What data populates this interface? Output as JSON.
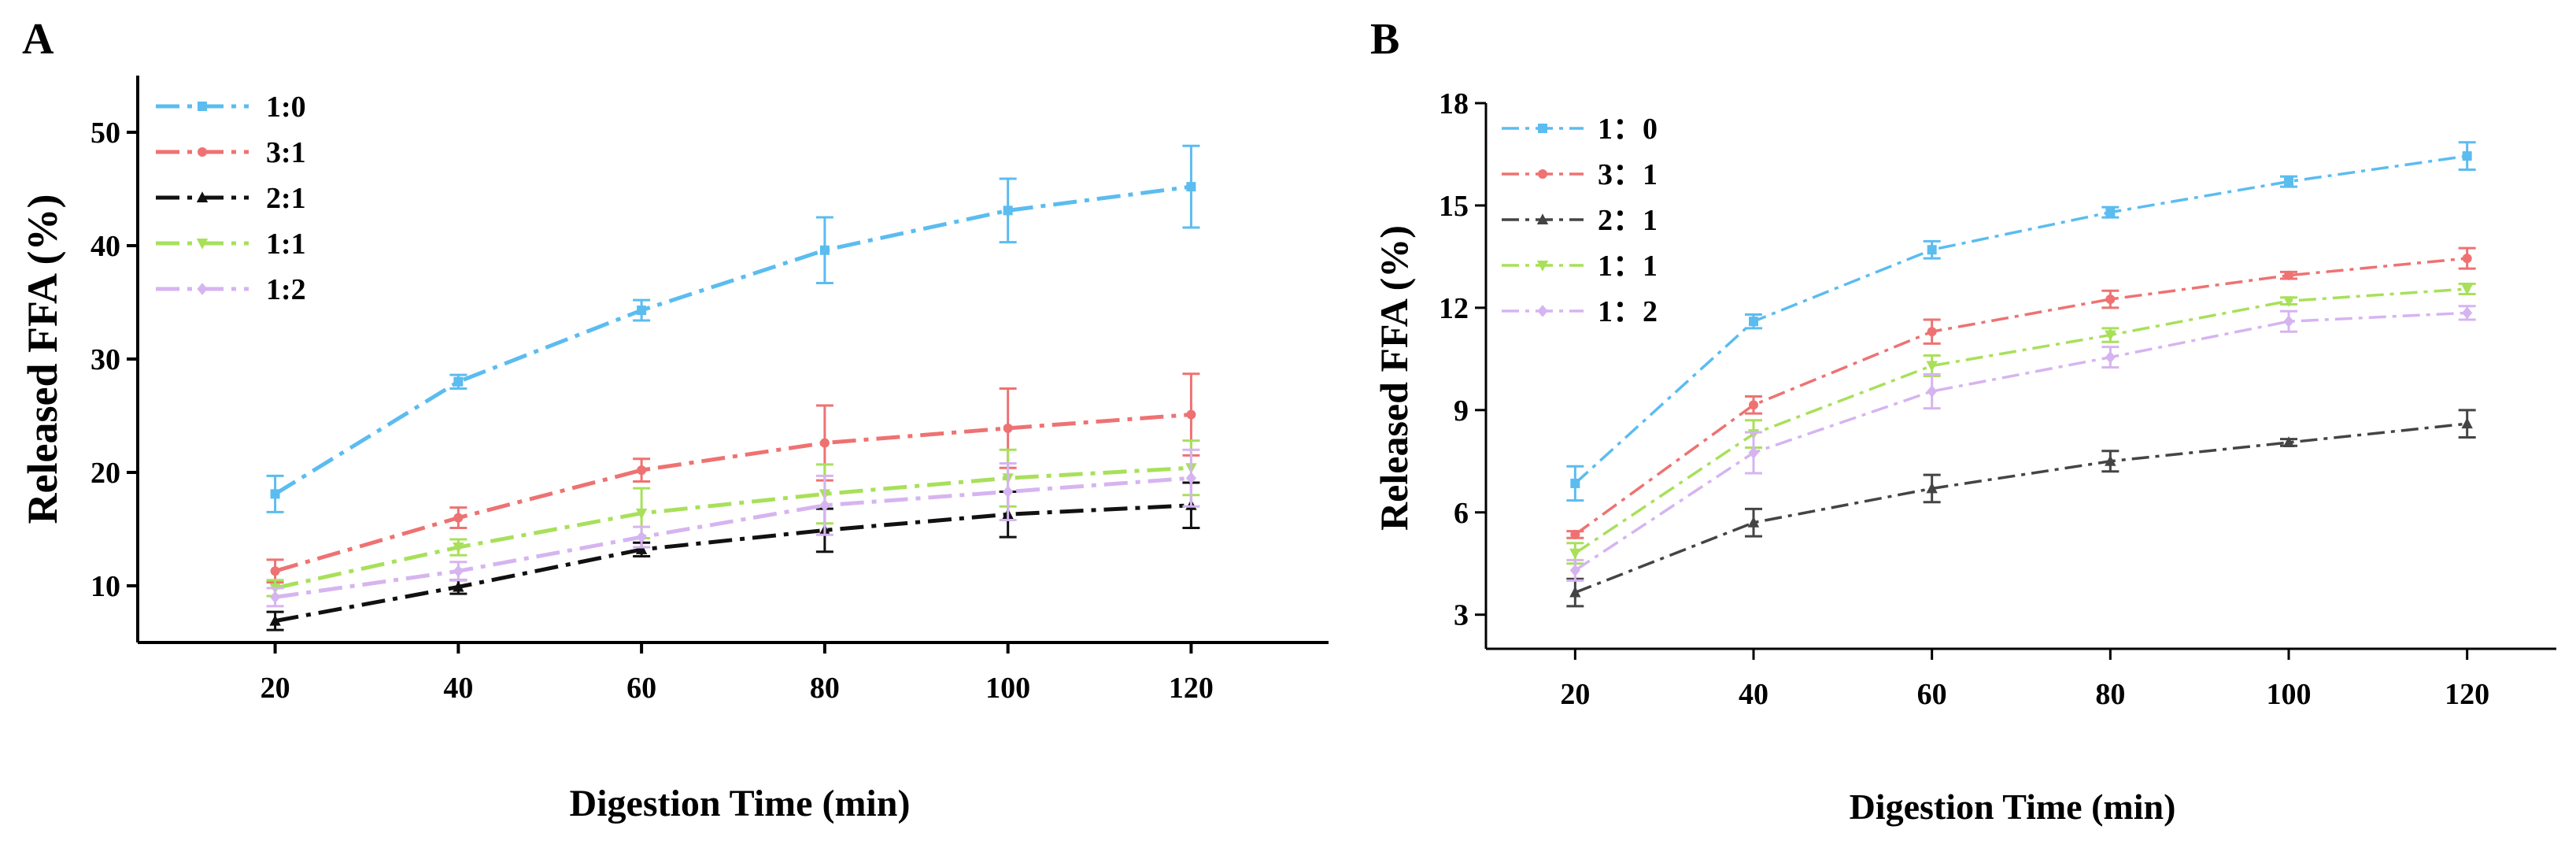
{
  "panels": [
    {
      "letter": "A",
      "chart_data": {
        "type": "line",
        "title": "",
        "xlabel": "Digestion Time (min)",
        "ylabel": "Released FFA (%)",
        "x": [
          20,
          40,
          60,
          80,
          100,
          120
        ],
        "xticks": [
          "20",
          "40",
          "60",
          "80",
          "100",
          "120"
        ],
        "xlim": [
          5,
          135
        ],
        "yticks": [
          "10",
          "20",
          "30",
          "40",
          "50"
        ],
        "ylim": [
          5,
          55
        ],
        "grid": false,
        "legend_position": "top-left",
        "series": [
          {
            "name": "1:0",
            "color": "#5bbcf0",
            "marker": "square",
            "values": [
              18.1,
              28.0,
              34.3,
              39.6,
              43.1,
              45.2
            ],
            "errors": [
              1.6,
              0.6,
              0.9,
              2.9,
              2.8,
              3.6
            ]
          },
          {
            "name": "3:1",
            "color": "#ee7272",
            "marker": "circle",
            "values": [
              11.3,
              16.0,
              20.2,
              22.6,
              23.9,
              25.1
            ],
            "errors": [
              1.0,
              0.9,
              1.0,
              3.3,
              3.5,
              3.6
            ]
          },
          {
            "name": "2:1",
            "color": "#111111",
            "marker": "triangle-up",
            "values": [
              6.9,
              9.9,
              13.2,
              14.9,
              16.3,
              17.1
            ],
            "errors": [
              0.8,
              0.6,
              0.6,
              1.9,
              2.0,
              2.0
            ]
          },
          {
            "name": "1:1",
            "color": "#a8e05a",
            "marker": "triangle-down",
            "values": [
              9.8,
              13.4,
              16.4,
              18.1,
              19.5,
              20.4
            ],
            "errors": [
              0.7,
              0.7,
              2.2,
              2.6,
              2.5,
              2.4
            ]
          },
          {
            "name": "1:2",
            "color": "#d6b4f0",
            "marker": "diamond",
            "values": [
              9.0,
              11.3,
              14.3,
              17.1,
              18.3,
              19.5
            ],
            "errors": [
              0.8,
              0.8,
              0.9,
              2.6,
              2.5,
              2.5
            ]
          }
        ]
      }
    },
    {
      "letter": "B",
      "chart_data": {
        "type": "line",
        "title": "",
        "xlabel": "Digestion Time (min)",
        "ylabel": "Released FFA (%)",
        "x": [
          20,
          40,
          60,
          80,
          100,
          120
        ],
        "xticks": [
          "20",
          "40",
          "60",
          "80",
          "100",
          "120"
        ],
        "xlim": [
          10,
          130
        ],
        "yticks": [
          "3",
          "6",
          "9",
          "12",
          "15",
          "18"
        ],
        "ylim": [
          2,
          18
        ],
        "grid": false,
        "legend_position": "top-left",
        "series": [
          {
            "name": "1：0",
            "color": "#5bbcf0",
            "marker": "square",
            "values": [
              6.85,
              11.6,
              13.7,
              14.8,
              15.7,
              16.45
            ],
            "errors": [
              0.5,
              0.2,
              0.25,
              0.15,
              0.15,
              0.4
            ]
          },
          {
            "name": "3：1",
            "color": "#ee7272",
            "marker": "circle",
            "values": [
              5.35,
              9.15,
              11.3,
              12.25,
              12.95,
              13.45
            ],
            "errors": [
              0.1,
              0.25,
              0.35,
              0.25,
              0.1,
              0.3
            ]
          },
          {
            "name": "2：1",
            "color": "#444444",
            "marker": "triangle-up",
            "values": [
              3.65,
              5.7,
              6.7,
              7.5,
              8.05,
              8.6
            ],
            "errors": [
              0.4,
              0.4,
              0.4,
              0.3,
              0.1,
              0.4
            ]
          },
          {
            "name": "1：1",
            "color": "#a8e05a",
            "marker": "triangle-down",
            "values": [
              4.8,
              8.3,
              10.3,
              11.2,
              12.2,
              12.55
            ],
            "errors": [
              0.3,
              0.4,
              0.3,
              0.2,
              0.1,
              0.15
            ]
          },
          {
            "name": "1：2",
            "color": "#d6b4f0",
            "marker": "diamond",
            "values": [
              4.3,
              7.75,
              9.55,
              10.55,
              11.6,
              11.85
            ],
            "errors": [
              0.3,
              0.6,
              0.5,
              0.3,
              0.3,
              0.2
            ]
          }
        ]
      }
    }
  ]
}
